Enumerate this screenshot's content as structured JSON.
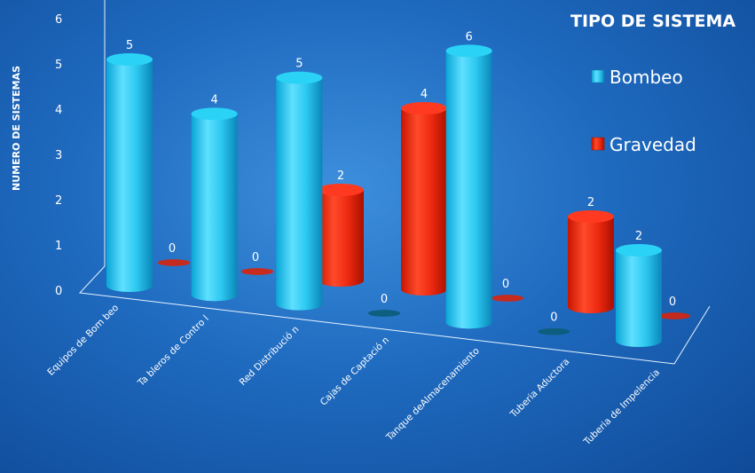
{
  "chart_data": {
    "type": "bar",
    "title": "TIPO DE SISTEMA",
    "ylabel": "NUMERO DE SISTEMAS",
    "xlabel": "",
    "ylim": [
      0,
      6
    ],
    "yticks": [
      0,
      1,
      2,
      3,
      4,
      5,
      6
    ],
    "categories": [
      "Equipos de Bombeo",
      "Tableros de Control",
      "Red Distribución",
      "Cajas de Captación",
      "Tanque deAlmacenamiento",
      "Tubería Aductora",
      "Tubería de Impelencia"
    ],
    "category_labels_display": [
      "Equipos de Bom beo",
      "Ta bleros de Contro l",
      "Red Distribució n",
      "Cajas de Captació n",
      "Tanque deAlmacenamiento",
      "Tuberia Aductora",
      "Tuberia de Impelencia"
    ],
    "series": [
      {
        "name": "Bombeo",
        "values": [
          5,
          4,
          5,
          0,
          6,
          0,
          2
        ],
        "color": "#22c4ec"
      },
      {
        "name": "Gravedad",
        "values": [
          0,
          0,
          2,
          4,
          0,
          2,
          0
        ],
        "color": "#ee2a10"
      }
    ],
    "legend_position": "top-right",
    "style": "3d-cylinder",
    "grid": false
  }
}
